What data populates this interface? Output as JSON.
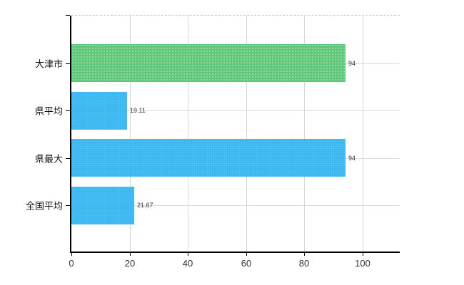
{
  "chart_data": {
    "type": "bar",
    "orientation": "horizontal",
    "title": "",
    "xlabel": "",
    "ylabel": "",
    "categories": [
      "大津市",
      "県平均",
      "県最大",
      "全国平均"
    ],
    "values": [
      94,
      19.11,
      94,
      21.67
    ],
    "value_labels": [
      "94",
      "19.11",
      "94",
      "21.67"
    ],
    "bar_colors": [
      "#5fc87b",
      "#3ab6f0",
      "#3ab6f0",
      "#3ab6f0"
    ],
    "x_ticks": [
      0,
      20,
      40,
      60,
      80,
      100
    ],
    "x_tick_labels": [
      "0",
      "20",
      "40",
      "60",
      "80",
      "100"
    ],
    "xlim": [
      0,
      112.7
    ],
    "grid": true,
    "legend": "none",
    "colors": {
      "background": "#ffffff",
      "axis": "#000000",
      "gridline_vertical": "#d6d6d6",
      "gridline_horizontal": "#d7ded7",
      "top_border_dashed": "#c9c9c9",
      "category_label": "#111111",
      "value_label": "#333333",
      "tick_label": "#333333",
      "bar_green": "#5fc87b",
      "bar_blue": "#3ab6f0"
    }
  }
}
